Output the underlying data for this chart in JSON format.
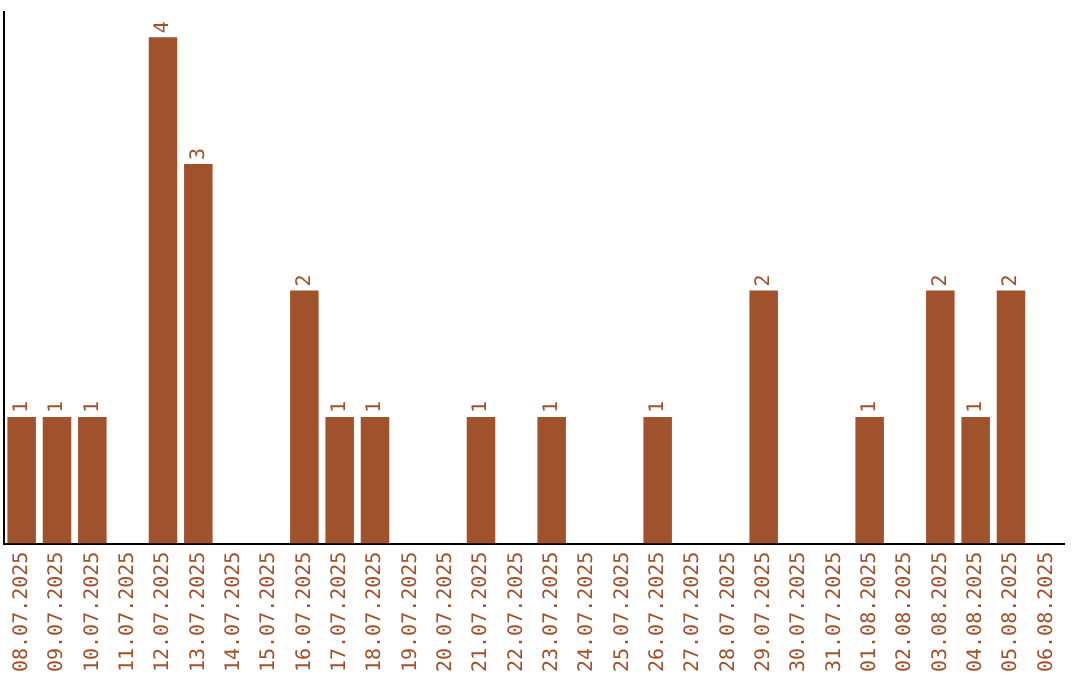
{
  "chart_data": {
    "type": "bar",
    "categories": [
      "08.07.2025",
      "09.07.2025",
      "10.07.2025",
      "11.07.2025",
      "12.07.2025",
      "13.07.2025",
      "14.07.2025",
      "15.07.2025",
      "16.07.2025",
      "17.07.2025",
      "18.07.2025",
      "19.07.2025",
      "20.07.2025",
      "21.07.2025",
      "22.07.2025",
      "23.07.2025",
      "24.07.2025",
      "25.07.2025",
      "26.07.2025",
      "27.07.2025",
      "28.07.2025",
      "29.07.2025",
      "30.07.2025",
      "31.07.2025",
      "01.08.2025",
      "02.08.2025",
      "03.08.2025",
      "04.08.2025",
      "05.08.2025",
      "06.08.2025"
    ],
    "values": [
      1,
      1,
      1,
      0,
      4,
      3,
      0,
      0,
      2,
      1,
      1,
      0,
      0,
      1,
      0,
      1,
      0,
      0,
      1,
      0,
      0,
      2,
      0,
      0,
      1,
      0,
      2,
      1,
      2,
      0
    ],
    "value_labels": [
      "1",
      "1",
      "1",
      null,
      "4",
      "3",
      null,
      null,
      "2",
      "1",
      "1",
      null,
      null,
      "1",
      null,
      "1",
      null,
      null,
      "1",
      null,
      null,
      "2",
      null,
      null,
      "1",
      null,
      "2",
      "1",
      "2",
      null
    ],
    "color": "#a0522d",
    "ylim": [
      0,
      4.2
    ],
    "tick_labels": "x",
    "grid": false,
    "legend": false
  }
}
